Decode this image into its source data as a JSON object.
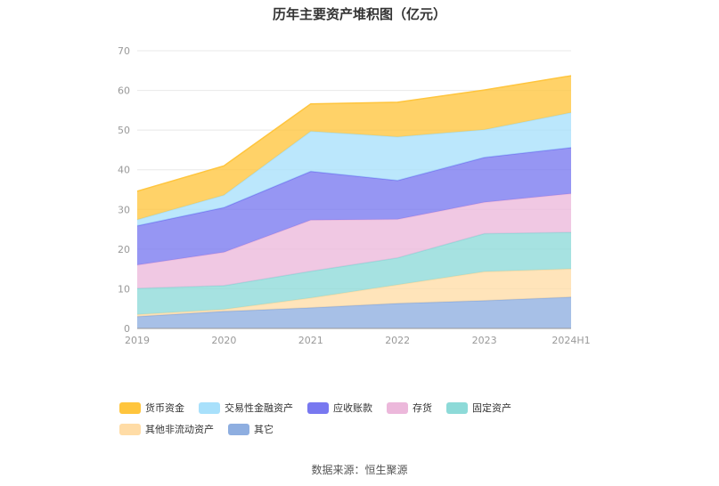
{
  "chart_data": {
    "type": "area",
    "stacked": true,
    "title": "历年主要资产堆积图（亿元）",
    "categories": [
      "2019",
      "2020",
      "2021",
      "2022",
      "2023",
      "2024H1"
    ],
    "ylim": [
      0,
      70
    ],
    "yticks": [
      0,
      10,
      20,
      30,
      40,
      50,
      60,
      70
    ],
    "grid": true,
    "legend_position": "bottom",
    "series": [
      {
        "name": "其它",
        "color": "#8eaee0",
        "values": [
          3.0,
          4.3,
          5.2,
          6.3,
          7.0,
          7.9
        ]
      },
      {
        "name": "其他非流动资产",
        "color": "#ffdca6",
        "values": [
          0.5,
          0.5,
          2.5,
          4.7,
          7.3,
          7.1
        ]
      },
      {
        "name": "固定资产",
        "color": "#8ddad8",
        "values": [
          6.6,
          6.0,
          6.7,
          6.8,
          9.6,
          9.2
        ]
      },
      {
        "name": "存货",
        "color": "#ecb8db",
        "values": [
          5.9,
          8.4,
          12.9,
          9.7,
          7.9,
          9.8
        ]
      },
      {
        "name": "应收账款",
        "color": "#7878f0",
        "values": [
          9.9,
          11.3,
          12.3,
          9.8,
          11.3,
          11.6
        ]
      },
      {
        "name": "交易性金融资产",
        "color": "#a8e0fb",
        "values": [
          1.5,
          3.1,
          10.1,
          11.0,
          7.0,
          8.8
        ]
      },
      {
        "name": "货币资金",
        "color": "#ffc53d",
        "values": [
          7.2,
          7.4,
          6.9,
          8.7,
          10.0,
          9.3
        ]
      }
    ],
    "legend_order": [
      "货币资金",
      "交易性金融资产",
      "应收账款",
      "存货",
      "固定资产",
      "其他非流动资产",
      "其它"
    ]
  },
  "source": "数据来源：恒生聚源"
}
